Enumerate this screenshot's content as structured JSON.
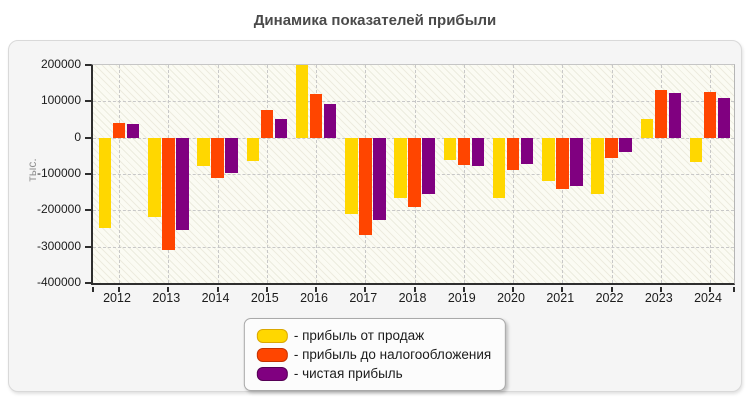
{
  "title": "Динамика показателей прибыли",
  "chart_data": {
    "type": "bar",
    "title": "Динамика показателей прибыли",
    "xlabel": "",
    "ylabel": "тыс.",
    "ylim": [
      -400000,
      200000
    ],
    "y_ticks": [
      200000,
      100000,
      0,
      -100000,
      -200000,
      -300000,
      -400000
    ],
    "grid": true,
    "legend_position": "bottom-center",
    "categories": [
      "2012",
      "2013",
      "2014",
      "2015",
      "2016",
      "2017",
      "2018",
      "2019",
      "2020",
      "2021",
      "2022",
      "2023",
      "2024"
    ],
    "series": [
      {
        "name": "прибыль от продаж",
        "legend_label": "- прибыль от продаж",
        "color": "#ffd700",
        "border_color": "#dba800",
        "values": [
          -250000,
          -218000,
          -78000,
          -63000,
          200000,
          -210000,
          -165000,
          -62000,
          -165000,
          -120000,
          -155000,
          52000,
          -68000
        ]
      },
      {
        "name": "прибыль до налогообложения",
        "legend_label": "- прибыль до налогообложения",
        "color": "#ff4500",
        "border_color": "#c63200",
        "values": [
          40000,
          -310000,
          -112000,
          75000,
          120000,
          -268000,
          -192000,
          -74000,
          -90000,
          -140000,
          -55000,
          130000,
          125000
        ]
      },
      {
        "name": "чистая прибыль",
        "legend_label": "- чистая прибыль",
        "color": "#800080",
        "border_color": "#550055",
        "values": [
          38000,
          -255000,
          -98000,
          52000,
          92000,
          -228000,
          -155000,
          -78000,
          -72000,
          -133000,
          -40000,
          122000,
          108000
        ]
      }
    ]
  }
}
